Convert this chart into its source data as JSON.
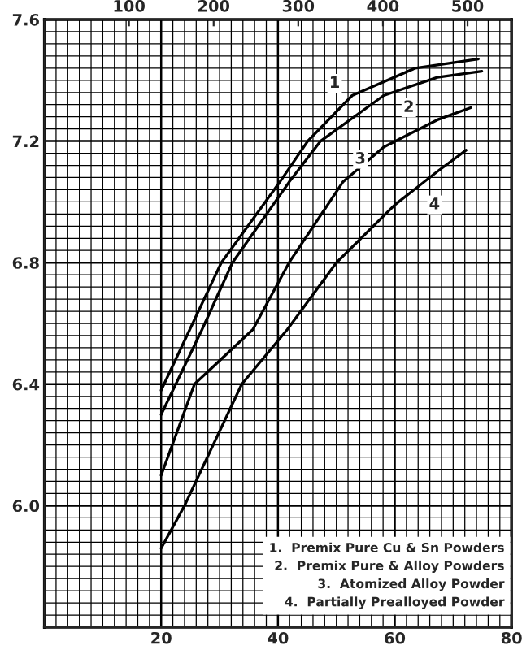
{
  "chart_data": {
    "type": "line",
    "xlim": [
      0,
      80
    ],
    "xticks": [
      20,
      40,
      60,
      80
    ],
    "ylim": [
      5.6,
      7.6
    ],
    "yticks": [
      {
        "value": 6.0,
        "label": "6.0"
      },
      6.4,
      6.8,
      7.2,
      7.6
    ],
    "x2lim": [
      0,
      552
    ],
    "x2ticks": [
      100,
      200,
      300,
      400,
      500
    ],
    "grid": true,
    "color": "#000000",
    "series": [
      {
        "x": [
          20,
          24.9,
          30.3,
          40.3,
          45.1,
          52.7,
          63.5,
          74.3
        ],
        "values": [
          6.38,
          6.58,
          6.8,
          7.065,
          7.2,
          7.35,
          7.44,
          7.47
        ]
      },
      {
        "x": [
          20,
          27.0,
          32.2,
          41.9,
          47.3,
          58.1,
          67.3,
          74.9
        ],
        "values": [
          6.3,
          6.58,
          6.8,
          7.065,
          7.2,
          7.35,
          7.41,
          7.43
        ]
      },
      {
        "x": [
          20,
          25.7,
          35.7,
          41.9,
          51.1,
          58.1,
          67.3,
          73.0
        ],
        "values": [
          6.1,
          6.4,
          6.58,
          6.8,
          7.065,
          7.18,
          7.27,
          7.31
        ]
      },
      {
        "x": [
          20,
          24.0,
          33.8,
          41.6,
          50.0,
          60.0,
          67.3,
          72.2
        ],
        "values": [
          5.86,
          6.0,
          6.4,
          6.58,
          6.8,
          6.99,
          7.1,
          7.17
        ]
      }
    ],
    "annotations": [
      {
        "text": "1",
        "x": 49.7,
        "y": 7.39
      },
      {
        "text": "2",
        "x": 62.4,
        "y": 7.31
      },
      {
        "text": "3",
        "x": 54.1,
        "y": 7.14
      },
      {
        "text": "4",
        "x": 66.8,
        "y": 6.99
      },
      "1.  Premix Pure Cu & Sn Powders",
      "2.  Premix Pure & Alloy Powders",
      "3.  Atomized Alloy Powder",
      "4.  Partially Prealloyed Powder"
    ]
  }
}
